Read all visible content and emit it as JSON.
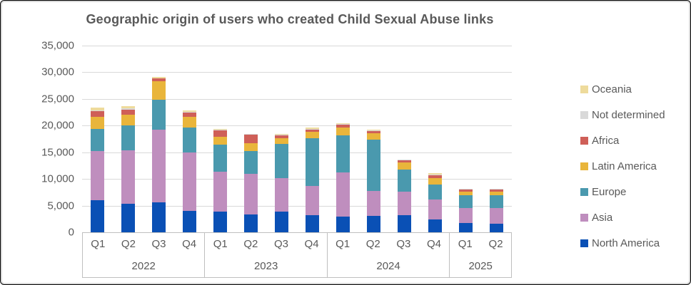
{
  "chart_data": {
    "type": "bar",
    "stacked": true,
    "title": "Geographic origin of users who created Child Sexual Abuse links",
    "grid": true,
    "legend_position": "right",
    "y_axis": {
      "min": 0,
      "max": 35000,
      "tick_step": 5000,
      "tick_labels": [
        "0",
        "5,000",
        "10,000",
        "15,000",
        "20,000",
        "25,000",
        "30,000",
        "35,000"
      ]
    },
    "groups": [
      {
        "year": "2022",
        "quarters": [
          "Q1",
          "Q2",
          "Q3",
          "Q4"
        ]
      },
      {
        "year": "2023",
        "quarters": [
          "Q1",
          "Q2",
          "Q3",
          "Q4"
        ]
      },
      {
        "year": "2024",
        "quarters": [
          "Q1",
          "Q2",
          "Q3",
          "Q4"
        ]
      },
      {
        "year": "2025",
        "quarters": [
          "Q1",
          "Q2"
        ]
      }
    ],
    "categories": [
      "2022 Q1",
      "2022 Q2",
      "2022 Q3",
      "2022 Q4",
      "2023 Q1",
      "2023 Q2",
      "2023 Q3",
      "2023 Q4",
      "2024 Q1",
      "2024 Q2",
      "2024 Q3",
      "2024 Q4",
      "2025 Q1",
      "2025 Q2"
    ],
    "series_bottom_to_top": [
      {
        "name": "North America",
        "color": "#0a50b5",
        "values": [
          6000,
          5300,
          5600,
          4000,
          3900,
          3300,
          3900,
          3200,
          3000,
          3100,
          3200,
          2400,
          1700,
          1600
        ]
      },
      {
        "name": "Asia",
        "color": "#bf8ebe",
        "values": [
          9200,
          10000,
          13600,
          10900,
          7500,
          7600,
          6300,
          5500,
          8200,
          4700,
          4400,
          3800,
          2900,
          2900
        ]
      },
      {
        "name": "Europe",
        "color": "#4a99ae",
        "values": [
          4200,
          4800,
          5700,
          4800,
          5000,
          4400,
          6400,
          9000,
          7000,
          9600,
          4200,
          2800,
          2300,
          2400
        ]
      },
      {
        "name": "Latin America",
        "color": "#e9b53b",
        "values": [
          2200,
          1900,
          3400,
          1900,
          1500,
          1400,
          1000,
          1200,
          1500,
          1200,
          1300,
          1200,
          700,
          700
        ]
      },
      {
        "name": "Africa",
        "color": "#cf5f58",
        "values": [
          1100,
          1000,
          500,
          900,
          1200,
          1600,
          600,
          400,
          500,
          400,
          400,
          500,
          400,
          400
        ]
      },
      {
        "name": "Not determined",
        "color": "#d9d9d9",
        "values": [
          100,
          200,
          100,
          100,
          100,
          100,
          100,
          100,
          100,
          100,
          100,
          100,
          100,
          100
        ]
      },
      {
        "name": "Oceania",
        "color": "#eedb9c",
        "values": [
          600,
          500,
          300,
          200,
          200,
          100,
          100,
          200,
          100,
          100,
          100,
          300,
          100,
          100
        ]
      }
    ],
    "legend_top_to_bottom": [
      "Oceania",
      "Not determined",
      "Africa",
      "Latin America",
      "Europe",
      "Asia",
      "North America"
    ]
  },
  "style_colors": {
    "text": "#595959",
    "gridline": "#d9d9d9",
    "axis_border": "#bfbfbf"
  }
}
